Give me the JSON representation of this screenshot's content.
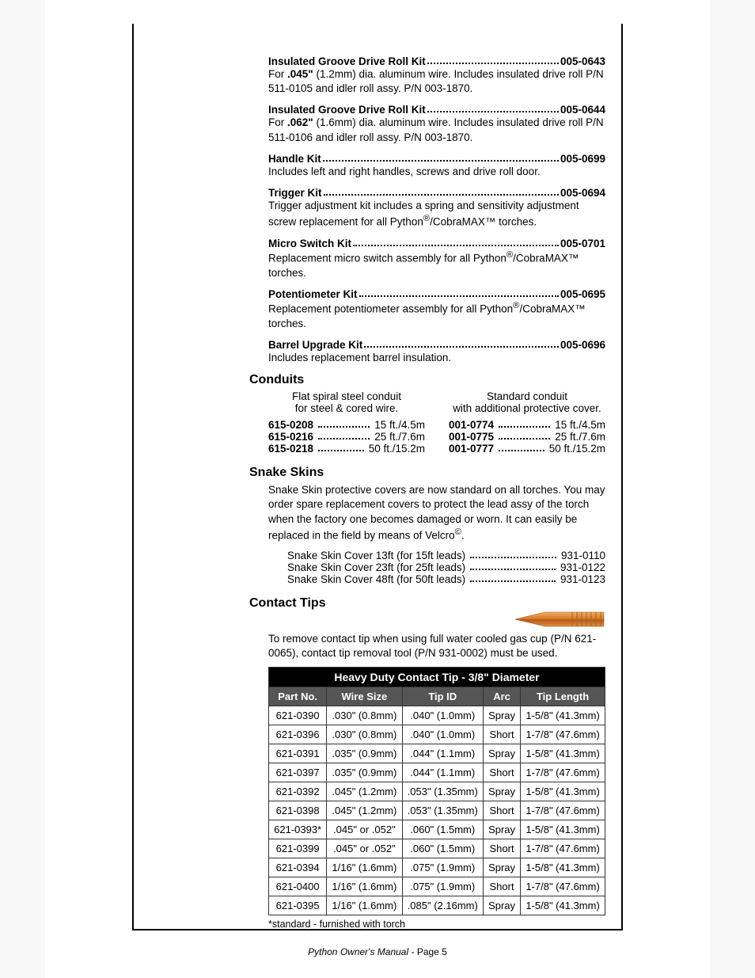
{
  "kits": [
    {
      "name": "Insulated Groove Drive Roll Kit",
      "pn": "005-0643",
      "desc": "For <b>.045\"</b> (1.2mm) dia. aluminum wire.  Includes insulated drive roll P/N 511-0105 and idler roll assy. P/N 003-1870."
    },
    {
      "name": "Insulated Groove Drive Roll Kit",
      "pn": "005-0644",
      "desc": "For <b>.062\"</b> (1.6mm) dia. aluminum wire.  Includes insulated drive roll P/N 511-0106 and idler roll assy. P/N 003-1870."
    },
    {
      "name": "Handle Kit",
      "pn": "005-0699",
      "desc": "Includes left and right handles, screws and drive roll door."
    },
    {
      "name": "Trigger Kit",
      "pn": "005-0694",
      "desc": "Trigger adjustment kit includes a spring and sensitivity adjustment screw replacement for all Python<sup>®</sup>/CobraMAX™ torches."
    },
    {
      "name": "Micro Switch Kit",
      "pn": "005-0701",
      "desc": "Replacement micro switch assembly for all Python<sup>®</sup>/CobraMAX™ torches."
    },
    {
      "name": "Potentiometer Kit",
      "pn": "005-0695",
      "desc": "Replacement potentiometer assembly for all Python<sup>®</sup>/CobraMAX™ torches."
    },
    {
      "name": "Barrel Upgrade Kit",
      "pn": "005-0696",
      "desc": "Includes replacement barrel insulation."
    }
  ],
  "conduits": {
    "title": "Conduits",
    "left": {
      "head1": "Flat spiral steel conduit",
      "head2": "for steel & cored wire.",
      "rows": [
        {
          "pn": "615-0208",
          "val": "15 ft./4.5m"
        },
        {
          "pn": "615-0216",
          "val": "25 ft./7.6m"
        },
        {
          "pn": "615-0218",
          "val": "50 ft./15.2m"
        }
      ]
    },
    "right": {
      "head1": "Standard conduit",
      "head2": "with additional protective cover.",
      "rows": [
        {
          "pn": "001-0774",
          "val": "15 ft./4.5m"
        },
        {
          "pn": "001-0775",
          "val": "25 ft./7.6m"
        },
        {
          "pn": "001-0777",
          "val": "50 ft./15.2m"
        }
      ]
    }
  },
  "snake": {
    "title": "Snake Skins",
    "desc": "Snake Skin protective covers are now standard on all torches. You may order spare replacement covers to protect the lead assy of the torch when the factory one becomes damaged or worn.  It can easily be replaced in the field by means of Velcro<sup>©</sup>.",
    "rows": [
      {
        "label": "Snake Skin Cover 13ft (for 15ft leads)",
        "pn": "931-0110"
      },
      {
        "label": "Snake Skin Cover 23ft (for 25ft leads)",
        "pn": "931-0122"
      },
      {
        "label": "Snake Skin Cover 48ft (for 50ft leads)",
        "pn": "931-0123"
      }
    ]
  },
  "tips": {
    "title": "Contact Tips",
    "intro": "To remove contact tip when using full water cooled gas cup (P/N 621-0065), contact tip removal tool (P/N 931-0002) must be used.",
    "table_title": "Heavy Duty Contact Tip - 3/8\" Diameter",
    "columns": [
      "Part No.",
      "Wire Size",
      "Tip ID",
      "Arc",
      "Tip Length"
    ],
    "rows": [
      [
        "621-0390",
        ".030\" (0.8mm)",
        ".040\" (1.0mm)",
        "Spray",
        "1-5/8\" (41.3mm)"
      ],
      [
        "621-0396",
        ".030\" (0.8mm)",
        ".040\" (1.0mm)",
        "Short",
        "1-7/8\" (47.6mm)"
      ],
      [
        "621-0391",
        ".035\" (0.9mm)",
        ".044\" (1.1mm)",
        "Spray",
        "1-5/8\" (41.3mm)"
      ],
      [
        "621-0397",
        ".035\" (0.9mm)",
        ".044\" (1.1mm)",
        "Short",
        "1-7/8\" (47.6mm)"
      ],
      [
        "621-0392",
        ".045\" (1.2mm)",
        ".053\" (1.35mm)",
        "Spray",
        "1-5/8\" (41.3mm)"
      ],
      [
        "621-0398",
        ".045\" (1.2mm)",
        ".053\" (1.35mm)",
        "Short",
        "1-7/8\" (47.6mm)"
      ],
      [
        "621-0393*",
        ".045\" or .052\"",
        ".060\" (1.5mm)",
        "Spray",
        "1-5/8\" (41.3mm)"
      ],
      [
        "621-0399",
        ".045\" or .052\"",
        ".060\" (1.5mm)",
        "Short",
        "1-7/8\" (47.6mm)"
      ],
      [
        "621-0394",
        "1/16\" (1.6mm)",
        ".075\" (1.9mm)",
        "Spray",
        "1-5/8\" (41.3mm)"
      ],
      [
        "621-0400",
        "1/16\" (1.6mm)",
        ".075\" (1.9mm)",
        "Short",
        "1-7/8\" (47.6mm)"
      ],
      [
        "621-0395",
        "1/16\" (1.6mm)",
        ".085\" (2.16mm)",
        "Spray",
        "1-5/8\" (41.3mm)"
      ]
    ],
    "footnote": "*standard - furnished with torch"
  },
  "footer": {
    "label": "Python Owner's Manual",
    "page": "Page 5"
  },
  "colors": {
    "table_header_bg": "#555555",
    "table_title_bg": "#000000",
    "text": "#000000"
  }
}
